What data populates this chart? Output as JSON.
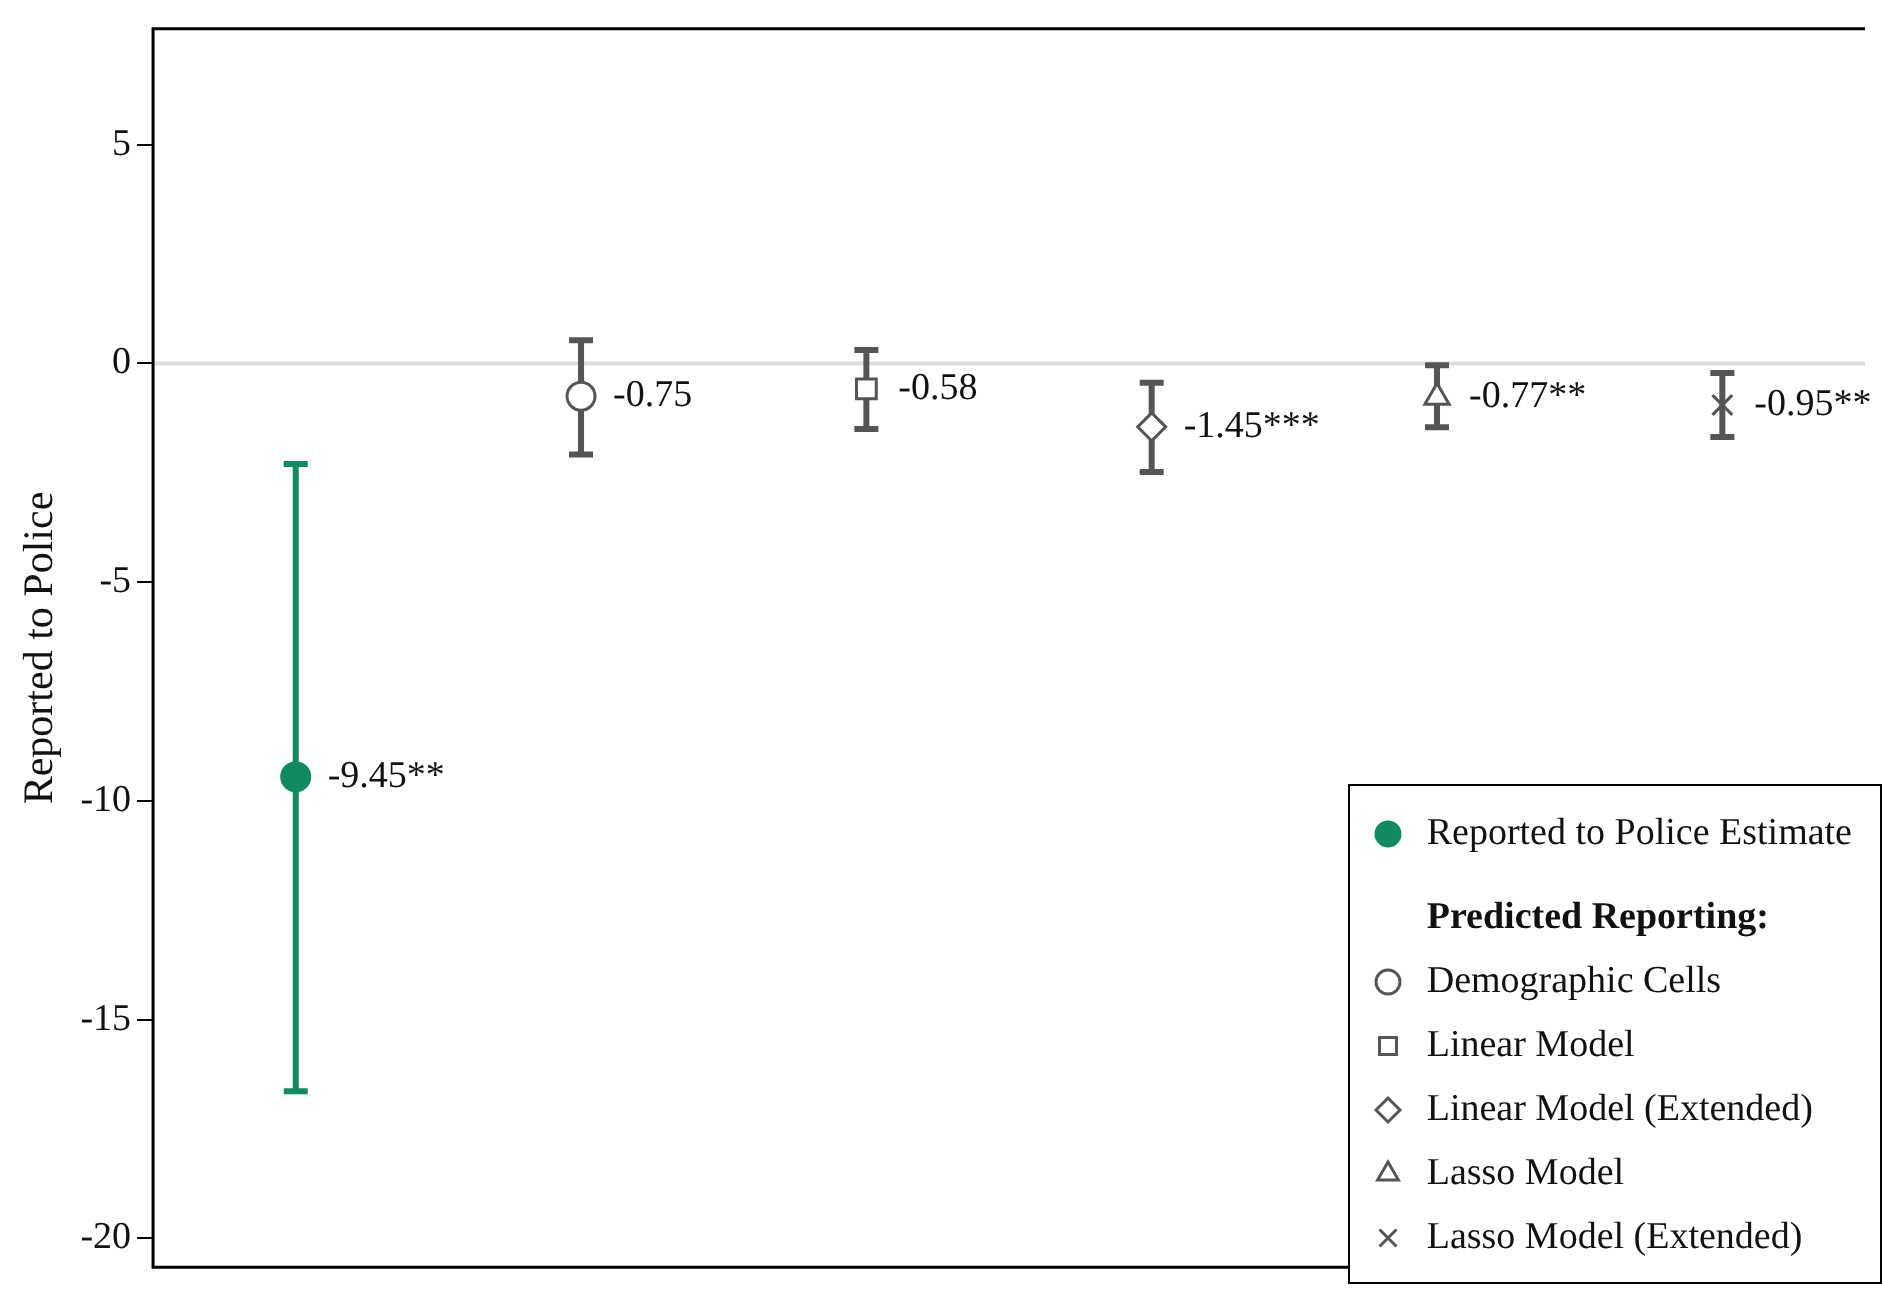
{
  "chart_data": {
    "type": "scatter",
    "ylabel": "Reported to Police",
    "legend_title": "Predicted Reporting:",
    "categories": [
      null,
      null,
      null,
      null,
      null,
      null
    ],
    "ylim": [
      -20.66,
      7.65
    ],
    "yticks": [
      -20,
      -15,
      -10,
      -5,
      0,
      5
    ],
    "grid": false,
    "legend": "bottom right",
    "ref_lines": [
      {
        "axis": "y",
        "value": 0,
        "color": "#dddddd"
      }
    ],
    "series": [
      {
        "name": "Reported to Police Estimate",
        "color": "#108a62",
        "marker": "circle",
        "values": [
          -9.45,
          null,
          null,
          null,
          null,
          null
        ],
        "errors": [
          [
            -16.64,
            -2.3
          ],
          null,
          null,
          null,
          null,
          null
        ],
        "value_labels": [
          "-9.45**",
          null,
          null,
          null,
          null,
          null
        ]
      },
      {
        "name": "Demographic Cells",
        "color": "#555555",
        "marker": "circle",
        "values": [
          null,
          -0.75,
          null,
          null,
          null,
          null
        ],
        "errors": [
          null,
          [
            -2.08,
            0.53
          ],
          null,
          null,
          null,
          null
        ],
        "value_labels": [
          null,
          "-0.75",
          null,
          null,
          null,
          null
        ]
      },
      {
        "name": "Linear Model",
        "color": "#555555",
        "marker": "square",
        "values": [
          null,
          null,
          -0.58,
          null,
          null,
          null
        ],
        "errors": [
          null,
          null,
          [
            -1.5,
            0.31
          ],
          null,
          null,
          null
        ],
        "value_labels": [
          null,
          null,
          "-0.58",
          null,
          null,
          null
        ]
      },
      {
        "name": "Linear Model (Extended)",
        "color": "#555555",
        "marker": "diamond",
        "values": [
          null,
          null,
          null,
          -1.45,
          null,
          null
        ],
        "errors": [
          null,
          null,
          null,
          [
            -2.48,
            -0.44
          ],
          null,
          null
        ],
        "value_labels": [
          null,
          null,
          null,
          "-1.45***",
          null,
          null
        ]
      },
      {
        "name": "Lasso Model",
        "color": "#555555",
        "marker": "triangle",
        "values": [
          null,
          null,
          null,
          null,
          -0.77,
          null
        ],
        "errors": [
          null,
          null,
          null,
          null,
          [
            -1.46,
            -0.04
          ],
          null
        ],
        "value_labels": [
          null,
          null,
          null,
          null,
          "-0.77**",
          null
        ]
      },
      {
        "name": "Lasso Model (Extended)",
        "color": "#555555",
        "marker": "cross",
        "values": [
          null,
          null,
          null,
          null,
          null,
          -0.95
        ],
        "errors": [
          null,
          null,
          null,
          null,
          null,
          [
            -1.68,
            -0.22
          ]
        ],
        "value_labels": [
          null,
          null,
          null,
          null,
          null,
          "-0.95**"
        ]
      }
    ]
  }
}
